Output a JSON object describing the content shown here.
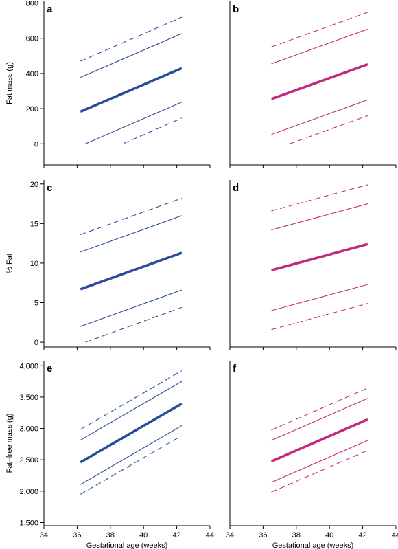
{
  "colors": {
    "blue": "#2B4C9B",
    "magenta": "#C4277E"
  },
  "chart_data": [
    {
      "panel": "a",
      "type": "line",
      "color": "blue",
      "ylabel": "Fat mass (g)",
      "xlabel": "",
      "xlim": [
        34,
        44
      ],
      "xticks": [
        "34",
        "36",
        "38",
        "40",
        "42",
        "44"
      ],
      "ylim": [
        -120,
        810
      ],
      "yticks": [
        0,
        200,
        400,
        600,
        800
      ],
      "ytick_labels": [
        "0",
        "200",
        "400",
        "600",
        "800"
      ],
      "series": [
        {
          "style": "dashed",
          "x": [
            36.2,
            42.3
          ],
          "y": [
            470,
            720
          ]
        },
        {
          "style": "solid",
          "x": [
            36.2,
            42.3
          ],
          "y": [
            378,
            627
          ]
        },
        {
          "style": "thick",
          "x": [
            36.2,
            42.3
          ],
          "y": [
            183,
            430
          ]
        },
        {
          "style": "solid",
          "x": [
            36.5,
            42.3
          ],
          "y": [
            0,
            237
          ]
        },
        {
          "style": "dashed",
          "x": [
            38.8,
            42.3
          ],
          "y": [
            2,
            146
          ]
        }
      ]
    },
    {
      "panel": "b",
      "type": "line",
      "color": "magenta",
      "ylabel": "",
      "xlabel": "",
      "xlim": [
        34,
        44
      ],
      "xticks": [
        "34",
        "36",
        "38",
        "40",
        "42",
        "44"
      ],
      "ylim": [
        -120,
        810
      ],
      "yticks": [],
      "ytick_labels": [],
      "series": [
        {
          "style": "dashed",
          "x": [
            36.5,
            42.3
          ],
          "y": [
            551,
            748
          ]
        },
        {
          "style": "solid",
          "x": [
            36.5,
            42.3
          ],
          "y": [
            455,
            652
          ]
        },
        {
          "style": "thick",
          "x": [
            36.5,
            42.3
          ],
          "y": [
            255,
            452
          ]
        },
        {
          "style": "solid",
          "x": [
            36.5,
            42.3
          ],
          "y": [
            53,
            250
          ]
        },
        {
          "style": "dashed",
          "x": [
            37.6,
            42.3
          ],
          "y": [
            0,
            160
          ]
        }
      ]
    },
    {
      "panel": "c",
      "type": "line",
      "color": "blue",
      "ylabel": "% Fat",
      "xlabel": "",
      "xlim": [
        34,
        44
      ],
      "xticks": [
        "34",
        "36",
        "38",
        "40",
        "42",
        "44"
      ],
      "ylim": [
        -0.6,
        20.5
      ],
      "yticks": [
        0,
        5,
        10,
        15,
        20
      ],
      "ytick_labels": [
        "0",
        "5",
        "10",
        "15",
        "20"
      ],
      "series": [
        {
          "style": "dashed",
          "x": [
            36.2,
            42.3
          ],
          "y": [
            13.6,
            18.2
          ]
        },
        {
          "style": "solid",
          "x": [
            36.2,
            42.3
          ],
          "y": [
            11.4,
            16.0
          ]
        },
        {
          "style": "thick",
          "x": [
            36.2,
            42.3
          ],
          "y": [
            6.7,
            11.3
          ]
        },
        {
          "style": "solid",
          "x": [
            36.2,
            42.3
          ],
          "y": [
            2.0,
            6.6
          ]
        },
        {
          "style": "dashed",
          "x": [
            36.5,
            42.3
          ],
          "y": [
            0.0,
            4.4
          ]
        }
      ]
    },
    {
      "panel": "d",
      "type": "line",
      "color": "magenta",
      "ylabel": "",
      "xlabel": "",
      "xlim": [
        34,
        44
      ],
      "xticks": [
        "34",
        "36",
        "38",
        "40",
        "42",
        "44"
      ],
      "ylim": [
        -0.6,
        20.5
      ],
      "yticks": [],
      "ytick_labels": [],
      "series": [
        {
          "style": "dashed",
          "x": [
            36.5,
            42.3
          ],
          "y": [
            16.6,
            19.9
          ]
        },
        {
          "style": "solid",
          "x": [
            36.5,
            42.3
          ],
          "y": [
            14.2,
            17.5
          ]
        },
        {
          "style": "thick",
          "x": [
            36.5,
            42.3
          ],
          "y": [
            9.1,
            12.4
          ]
        },
        {
          "style": "solid",
          "x": [
            36.5,
            42.3
          ],
          "y": [
            4.0,
            7.3
          ]
        },
        {
          "style": "dashed",
          "x": [
            36.5,
            42.3
          ],
          "y": [
            1.6,
            4.9
          ]
        }
      ]
    },
    {
      "panel": "e",
      "type": "line",
      "color": "blue",
      "ylabel": "Fat–free mass (g)",
      "xlabel": "Gestational age (weeks)",
      "xlim": [
        34,
        44
      ],
      "xticks": [
        "34",
        "36",
        "38",
        "40",
        "42",
        "44"
      ],
      "ylim": [
        1450,
        4080
      ],
      "yticks": [
        1500,
        2000,
        2500,
        3000,
        3500,
        4000
      ],
      "ytick_labels": [
        "1,500",
        "2,000",
        "2,500",
        "3,000",
        "3,500",
        "4,000"
      ],
      "series": [
        {
          "style": "dashed",
          "x": [
            36.2,
            42.3
          ],
          "y": [
            2985,
            3920
          ]
        },
        {
          "style": "solid",
          "x": [
            36.2,
            42.3
          ],
          "y": [
            2815,
            3750
          ]
        },
        {
          "style": "thick",
          "x": [
            36.2,
            42.3
          ],
          "y": [
            2460,
            3395
          ]
        },
        {
          "style": "solid",
          "x": [
            36.2,
            42.3
          ],
          "y": [
            2105,
            3045
          ]
        },
        {
          "style": "dashed",
          "x": [
            36.2,
            42.3
          ],
          "y": [
            1950,
            2885
          ]
        }
      ]
    },
    {
      "panel": "f",
      "type": "line",
      "color": "magenta",
      "ylabel": "",
      "xlabel": "Gestational age (weeks)",
      "xlim": [
        34,
        44
      ],
      "xticks": [
        "34",
        "36",
        "38",
        "40",
        "42",
        "44"
      ],
      "ylim": [
        1450,
        4080
      ],
      "yticks": [],
      "ytick_labels": [],
      "series": [
        {
          "style": "dashed",
          "x": [
            36.5,
            42.3
          ],
          "y": [
            2975,
            3645
          ]
        },
        {
          "style": "solid",
          "x": [
            36.5,
            42.3
          ],
          "y": [
            2810,
            3480
          ]
        },
        {
          "style": "thick",
          "x": [
            36.5,
            42.3
          ],
          "y": [
            2475,
            3145
          ]
        },
        {
          "style": "solid",
          "x": [
            36.5,
            42.3
          ],
          "y": [
            2140,
            2810
          ]
        },
        {
          "style": "dashed",
          "x": [
            36.5,
            42.3
          ],
          "y": [
            1985,
            2650
          ]
        }
      ]
    }
  ]
}
